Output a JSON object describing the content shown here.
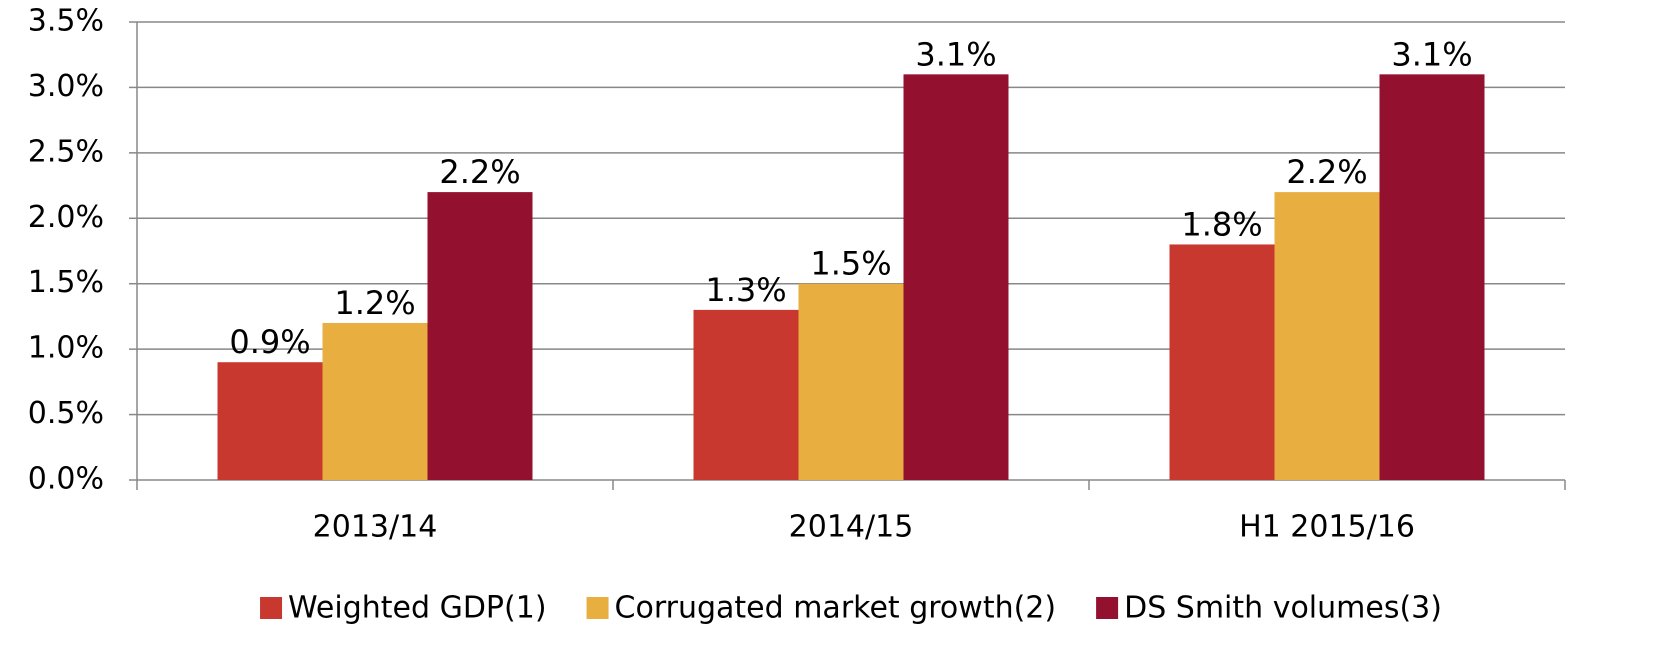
{
  "chart_data": {
    "type": "bar",
    "categories": [
      "2013/14",
      "2014/15",
      "H1 2015/16"
    ],
    "series": [
      {
        "name": "Weighted GDP(1)",
        "color": "#c8382f",
        "values": [
          0.9,
          1.3,
          1.8
        ],
        "value_labels": [
          "0.9%",
          "1.3%",
          "1.8%"
        ]
      },
      {
        "name": "Corrugated market growth(2)",
        "color": "#e8ae40",
        "values": [
          1.2,
          1.5,
          2.2
        ],
        "value_labels": [
          "1.2%",
          "1.5%",
          "2.2%"
        ]
      },
      {
        "name": "DS Smith volumes(3)",
        "color": "#93102e",
        "values": [
          2.2,
          3.1,
          3.1
        ],
        "value_labels": [
          "2.2%",
          "3.1%",
          "3.1%"
        ]
      }
    ],
    "ylim": [
      0,
      3.5
    ],
    "yticks": [
      {
        "value": 0,
        "label": "0.0%"
      },
      {
        "value": 0.5,
        "label": "0.5%"
      },
      {
        "value": 1,
        "label": "1.0%"
      },
      {
        "value": 1.5,
        "label": "1.5%"
      },
      {
        "value": 2,
        "label": "2.0%"
      },
      {
        "value": 2.5,
        "label": "2.5%"
      },
      {
        "value": 3,
        "label": "3.0%"
      },
      {
        "value": 3.5,
        "label": "3.5%"
      }
    ],
    "grid": true,
    "legend": "bottom"
  }
}
